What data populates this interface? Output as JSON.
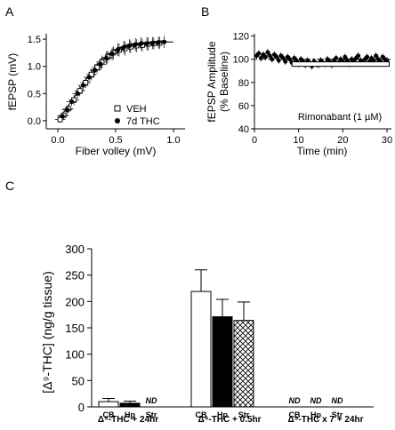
{
  "chart_data": [
    {
      "panel": "A",
      "type": "scatter",
      "xlabel": "Fiber volley (mV)",
      "ylabel": "fEPSP (mV)",
      "xlim": [
        -0.1,
        1.1
      ],
      "ylim": [
        -0.15,
        1.6
      ],
      "xticks": [
        "0.0",
        "0.5",
        "1.0"
      ],
      "yticks": [
        "0.0",
        "0.5",
        "1.0",
        "1.5"
      ],
      "legend_position": "bottom-right",
      "fit_curve": {
        "x": [
          0.0,
          0.05,
          0.1,
          0.15,
          0.2,
          0.25,
          0.3,
          0.35,
          0.4,
          0.45,
          0.5,
          0.55,
          0.6,
          0.65,
          0.7,
          0.75,
          0.8,
          0.85,
          0.9,
          0.95,
          1.0
        ],
        "y": [
          0.03,
          0.15,
          0.3,
          0.46,
          0.62,
          0.78,
          0.92,
          1.05,
          1.15,
          1.24,
          1.31,
          1.36,
          1.4,
          1.42,
          1.43,
          1.44,
          1.44,
          1.45,
          1.45,
          1.45,
          1.45
        ]
      },
      "series": [
        {
          "name": "VEH",
          "marker": "open-square",
          "x": [
            0.02,
            0.05,
            0.09,
            0.14,
            0.19,
            0.24,
            0.29,
            0.34,
            0.38,
            0.43,
            0.48,
            0.53,
            0.58,
            0.63,
            0.68,
            0.73,
            0.78,
            0.83,
            0.88
          ],
          "y": [
            0.02,
            0.1,
            0.22,
            0.38,
            0.55,
            0.7,
            0.85,
            0.98,
            1.08,
            1.17,
            1.25,
            1.3,
            1.33,
            1.36,
            1.38,
            1.39,
            1.41,
            1.42,
            1.43
          ],
          "err": [
            0.06,
            0.07,
            0.08,
            0.09,
            0.1,
            0.1,
            0.11,
            0.11,
            0.12,
            0.12,
            0.12,
            0.12,
            0.13,
            0.12,
            0.12,
            0.12,
            0.12,
            0.11,
            0.11
          ]
        },
        {
          "name": "7d THC",
          "marker": "filled-circle",
          "x": [
            0.04,
            0.08,
            0.12,
            0.17,
            0.22,
            0.27,
            0.32,
            0.37,
            0.42,
            0.47,
            0.52,
            0.57,
            0.62,
            0.67,
            0.72,
            0.77,
            0.82,
            0.87,
            0.92
          ],
          "y": [
            0.08,
            0.2,
            0.35,
            0.5,
            0.65,
            0.8,
            0.93,
            1.04,
            1.15,
            1.23,
            1.31,
            1.35,
            1.38,
            1.4,
            1.42,
            1.42,
            1.43,
            1.44,
            1.45
          ],
          "err": [
            0.06,
            0.07,
            0.08,
            0.09,
            0.1,
            0.1,
            0.11,
            0.11,
            0.12,
            0.12,
            0.12,
            0.12,
            0.12,
            0.12,
            0.12,
            0.12,
            0.11,
            0.11,
            0.11
          ]
        }
      ]
    },
    {
      "panel": "B",
      "type": "scatter",
      "xlabel": "Time (min)",
      "ylabel": "fEPSP Amplitude",
      "ylabel2": "(% Baseline)",
      "xlim": [
        0,
        31
      ],
      "ylim": [
        40,
        122
      ],
      "xticks": [
        "0",
        "10",
        "20",
        "30"
      ],
      "yticks": [
        "40",
        "60",
        "80",
        "100",
        "120"
      ],
      "reference_line": 100,
      "treatment_bar": {
        "label": "Rimonabant (1 µM)",
        "start": 8.5,
        "end": 30.5
      },
      "points": {
        "x": [
          0.5,
          1,
          1.5,
          2,
          2.5,
          3,
          3.5,
          4,
          4.5,
          5,
          5.5,
          6,
          6.5,
          7,
          7.5,
          8,
          8.5,
          9,
          9.5,
          10,
          10.5,
          11,
          11.5,
          12,
          12.5,
          13,
          13.5,
          14,
          14.5,
          15,
          15.5,
          16,
          16.5,
          17,
          17.5,
          18,
          18.5,
          19,
          19.5,
          20,
          20.5,
          21,
          21.5,
          22,
          22.5,
          23,
          23.5,
          24,
          24.5,
          25,
          25.5,
          26,
          26.5,
          27,
          27.5,
          28,
          28.5,
          29,
          29.5,
          30
        ],
        "y": [
          103,
          105,
          101,
          104,
          102,
          106,
          103,
          100,
          104,
          102,
          99,
          103,
          101,
          98,
          102,
          100,
          97,
          101,
          99,
          96,
          100,
          98,
          95,
          99,
          97,
          94,
          98,
          96,
          95,
          99,
          97,
          96,
          100,
          98,
          95,
          99,
          101,
          97,
          100,
          98,
          102,
          99,
          96,
          100,
          98,
          101,
          103,
          99,
          97,
          100,
          102,
          98,
          101,
          99,
          103,
          100,
          98,
          102,
          100,
          99
        ],
        "err": 3
      }
    },
    {
      "panel": "C",
      "type": "bar",
      "ylabel": "[Δ⁹-THC] (ng/g tissue)",
      "ylim": [
        0,
        300
      ],
      "yticks": [
        "0",
        "50",
        "100",
        "150",
        "200",
        "250",
        "300"
      ],
      "groups": [
        {
          "label": "Δ⁹-THC + 24hr",
          "bars": [
            {
              "name": "CB",
              "value": 10,
              "err": 6,
              "fill": "white"
            },
            {
              "name": "Hp",
              "value": 7,
              "err": 4,
              "fill": "black"
            },
            {
              "name": "Str",
              "value": null,
              "nd": "ND"
            }
          ]
        },
        {
          "label": "Δ⁹-THC + 0.5hr",
          "bars": [
            {
              "name": "CB",
              "value": 219,
              "err": 41,
              "fill": "white"
            },
            {
              "name": "Hp",
              "value": 171,
              "err": 33,
              "fill": "black"
            },
            {
              "name": "Str",
              "value": 164,
              "err": 35,
              "fill": "crosshatch"
            }
          ]
        },
        {
          "label": "Δ⁹-THC x 7 + 24hr",
          "bars": [
            {
              "name": "CB",
              "value": null,
              "nd": "ND"
            },
            {
              "name": "Hp",
              "value": null,
              "nd": "ND"
            },
            {
              "name": "Str",
              "value": null,
              "nd": "ND"
            }
          ]
        }
      ]
    }
  ],
  "labels": {
    "panelA": "A",
    "panelB": "B",
    "panelC": "C",
    "aY": "fEPSP (mV)",
    "aX": "Fiber volley (mV)",
    "legendVeh": "VEH",
    "legendThc": "7d THC",
    "bY1": "fEPSP Amplitude",
    "bY2": "(% Baseline)",
    "bX": "Time (min)",
    "rimonabant": "Rimonabant (1 µM)",
    "cY": "[Δ⁹-THC] (ng/g tissue)",
    "g1": "Δ⁹-THC + 24hr",
    "g2": "Δ⁹-THC + 0.5hr",
    "g3": "Δ⁹-THC x 7 + 24hr"
  },
  "colors": {
    "ink": "#000000",
    "background": "#ffffff"
  }
}
